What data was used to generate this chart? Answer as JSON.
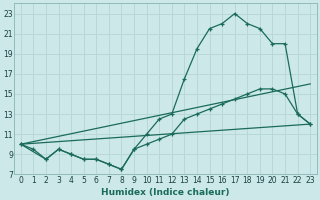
{
  "xlabel": "Humidex (Indice chaleur)",
  "background_color": "#cce8e8",
  "grid_color": "#b8d8d8",
  "line_color": "#1a6b5a",
  "xlim": [
    -0.5,
    23.5
  ],
  "ylim": [
    7,
    24
  ],
  "xticks": [
    0,
    1,
    2,
    3,
    4,
    5,
    6,
    7,
    8,
    9,
    10,
    11,
    12,
    13,
    14,
    15,
    16,
    17,
    18,
    19,
    20,
    21,
    22,
    23
  ],
  "yticks": [
    7,
    9,
    11,
    13,
    15,
    17,
    19,
    21,
    23
  ],
  "lines": [
    {
      "x": [
        0,
        1,
        2,
        3,
        4,
        5,
        6,
        7,
        8,
        9,
        10,
        11,
        12,
        13,
        14,
        15,
        16,
        17,
        18,
        19,
        20,
        21,
        22,
        23
      ],
      "y": [
        10,
        9.5,
        8.5,
        9.5,
        9,
        8.5,
        8.5,
        8,
        7.5,
        9.5,
        11,
        12.5,
        13,
        16.5,
        19.5,
        21.5,
        22,
        23,
        22,
        21.5,
        20,
        20,
        13,
        12
      ],
      "marker": true
    },
    {
      "x": [
        0,
        2,
        3,
        4,
        5,
        6,
        7,
        8,
        9,
        10,
        11,
        12,
        13,
        14,
        15,
        16,
        17,
        18,
        19,
        20,
        21,
        22,
        23
      ],
      "y": [
        10,
        8.5,
        9.5,
        9,
        8.5,
        8.5,
        8,
        7.5,
        9.5,
        10,
        10.5,
        11,
        12.5,
        13,
        13.5,
        14,
        14.5,
        15,
        15.5,
        15.5,
        15,
        13,
        12
      ],
      "marker": true
    },
    {
      "x": [
        0,
        23
      ],
      "y": [
        10,
        16
      ],
      "marker": false
    },
    {
      "x": [
        0,
        23
      ],
      "y": [
        10,
        12
      ],
      "marker": false
    }
  ]
}
